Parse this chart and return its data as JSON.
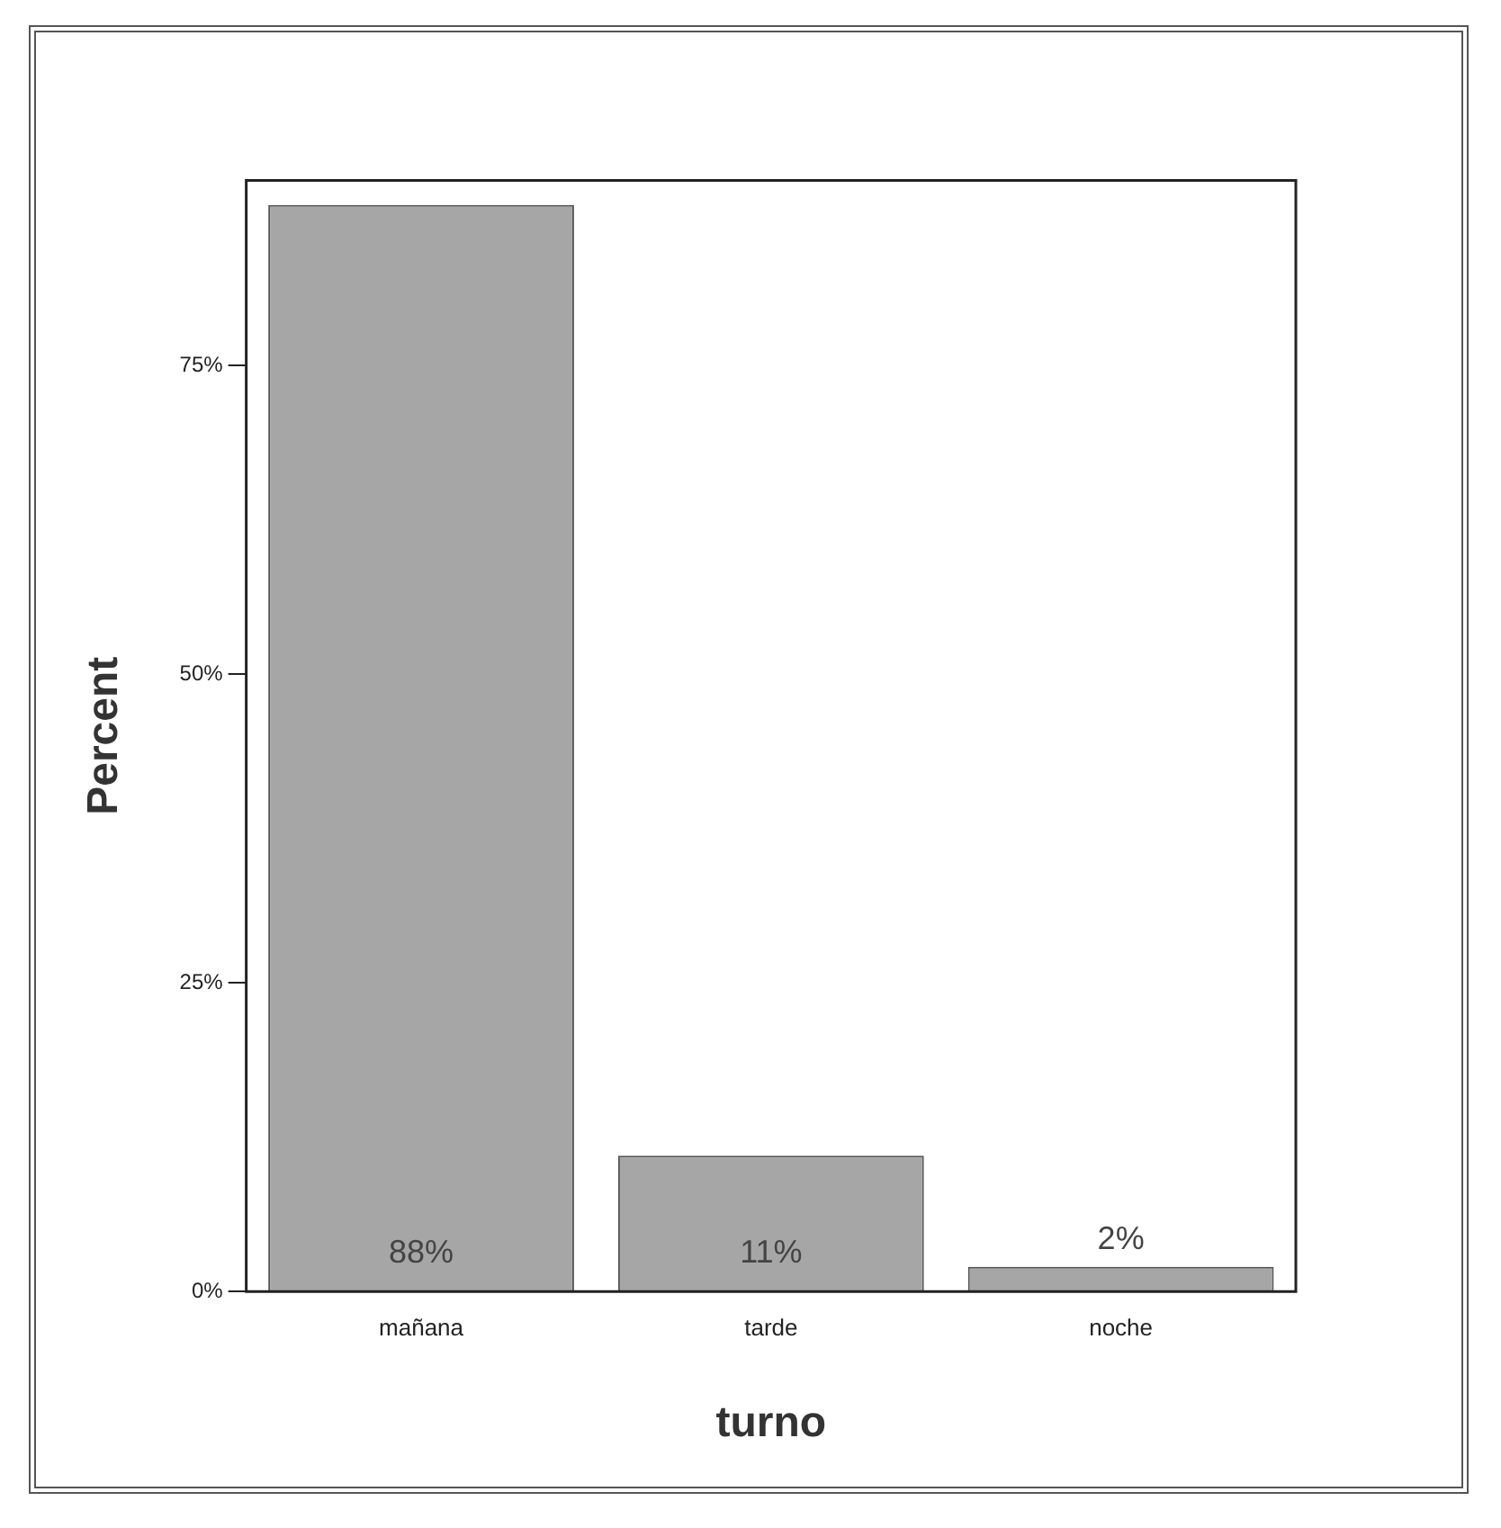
{
  "chart_data": {
    "type": "bar",
    "xlabel": "turno",
    "ylabel": "Percent",
    "categories": [
      "mañana",
      "tarde",
      "noche"
    ],
    "values": [
      88,
      11,
      2
    ],
    "color": "#a6a6a6",
    "value_labels": [
      "88%",
      "11%",
      "2%"
    ],
    "ylim": [
      0,
      90
    ],
    "yticks": [
      {
        "value": 0,
        "label": "0%"
      },
      {
        "value": 25,
        "label": "25%"
      },
      {
        "value": 50,
        "label": "50%"
      },
      {
        "value": 75,
        "label": "75%"
      }
    ],
    "grid": false,
    "legend": false
  }
}
